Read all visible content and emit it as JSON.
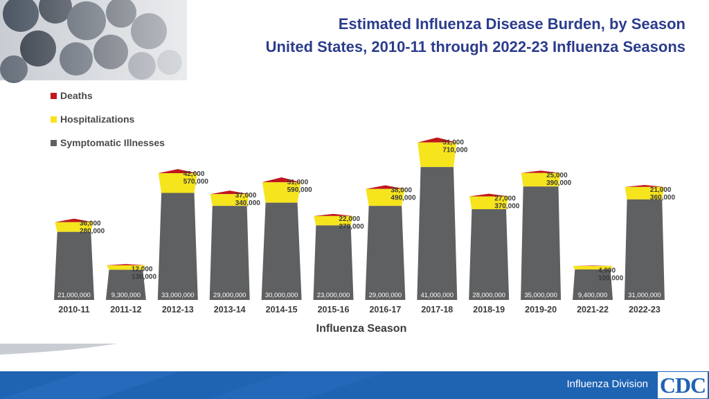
{
  "header": {
    "title_line1": "Estimated Influenza Disease Burden, by Season",
    "title_line2": "United States, 2010-11 through 2022-23 Influenza Seasons"
  },
  "legend": {
    "deaths": "Deaths",
    "hospitalizations": "Hospitalizations",
    "illnesses": "Symptomatic Illnesses"
  },
  "footer": {
    "division": "Influenza Division",
    "logo": "CDC"
  },
  "colors": {
    "title": "#2b3c8c",
    "deaths": "#c0171c",
    "hospitalizations": "#f6e41d",
    "illnesses": "#5f6062",
    "footer": "#1f63b3"
  },
  "chart_data": {
    "type": "bar",
    "xlabel": "Influenza Season",
    "ylabel": "",
    "categories": [
      "2010-11",
      "2011-12",
      "2012-13",
      "2013-14",
      "2014-15",
      "2015-16",
      "2016-17",
      "2017-18",
      "2018-19",
      "2019-20",
      "2021-22",
      "2022-23"
    ],
    "series": [
      {
        "name": "Symptomatic Illnesses",
        "values": [
          21000000,
          9300000,
          33000000,
          29000000,
          30000000,
          23000000,
          29000000,
          41000000,
          28000000,
          35000000,
          9400000,
          31000000
        ],
        "labels": [
          "21,000,000",
          "9,300,000",
          "33,000,000",
          "29,000,000",
          "30,000,000",
          "23,000,000",
          "29,000,000",
          "41,000,000",
          "28,000,000",
          "35,000,000",
          "9,400,000",
          "31,000,000"
        ]
      },
      {
        "name": "Hospitalizations",
        "values": [
          280000,
          130000,
          570000,
          340000,
          590000,
          270000,
          490000,
          710000,
          370000,
          390000,
          100000,
          360000
        ],
        "labels": [
          "280,000",
          "130,000",
          "570,000",
          "340,000",
          "590,000",
          "270,000",
          "490,000",
          "710,000",
          "370,000",
          "390,000",
          "100,000",
          "360,000"
        ]
      },
      {
        "name": "Deaths",
        "values": [
          36000,
          12000,
          42000,
          37000,
          51000,
          22000,
          38000,
          51000,
          27000,
          25000,
          4900,
          21000
        ],
        "labels": [
          "36,000",
          "12,000",
          "42,000",
          "37,000",
          "51,000",
          "22,000",
          "38,000",
          "51,000",
          "27,000",
          "25,000",
          "4,900",
          "21,000"
        ]
      }
    ]
  }
}
